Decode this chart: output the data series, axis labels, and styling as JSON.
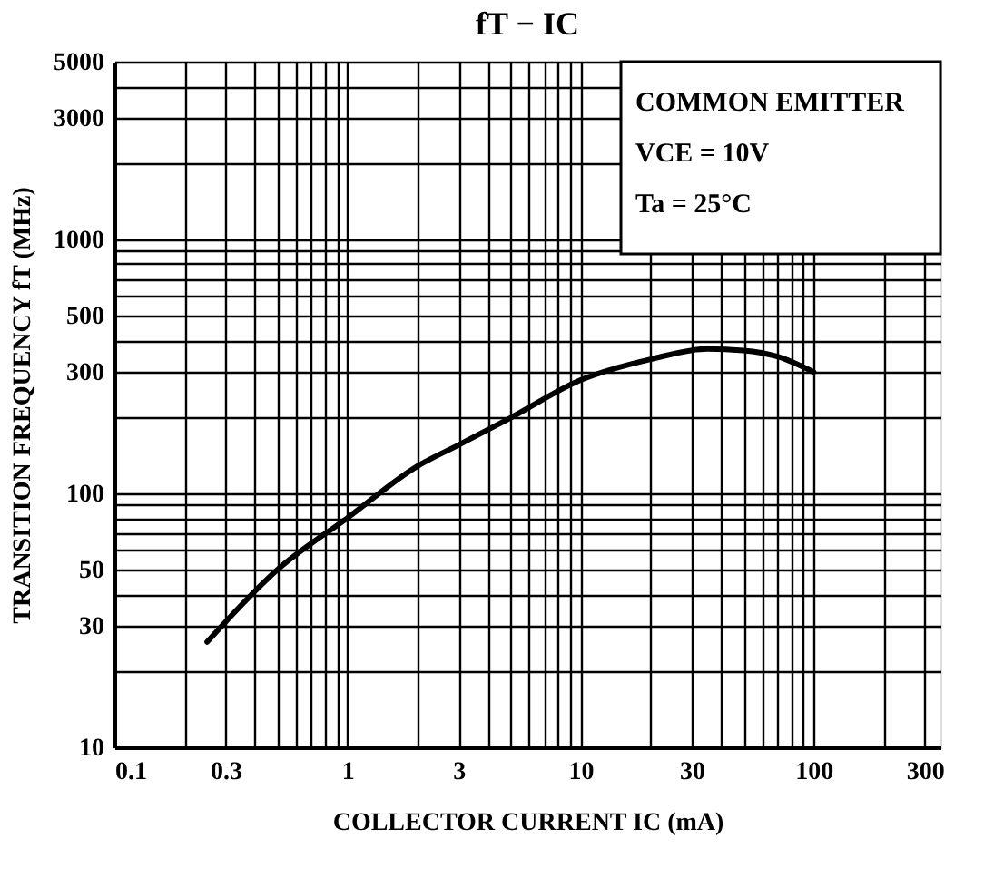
{
  "chart_data": {
    "type": "line",
    "title": "fT − IC",
    "xlabel": "COLLECTOR CURRENT IC (mA)",
    "ylabel": "TRANSITION FREQUENCY fT (MHz)",
    "annotations": [
      "COMMON EMITTER",
      "VCE = 10V",
      "Ta = 25°C"
    ],
    "log": "xy",
    "grid": true,
    "marker": "none",
    "line_style": "solid",
    "xlim": [
      0.1,
      350
    ],
    "ylim": [
      10,
      5000
    ],
    "xticks": [
      0.1,
      {
        "value": 0.2,
        "label": null
      },
      0.3,
      {
        "value": 0.4,
        "label": null
      },
      {
        "value": 0.5,
        "label": null
      },
      {
        "value": 0.6,
        "label": null
      },
      {
        "value": 0.7,
        "label": null
      },
      {
        "value": 0.8,
        "label": null
      },
      {
        "value": 0.9,
        "label": null
      },
      1,
      {
        "value": 2,
        "label": null
      },
      3,
      {
        "value": 4,
        "label": null
      },
      {
        "value": 5,
        "label": null
      },
      {
        "value": 6,
        "label": null
      },
      {
        "value": 7,
        "label": null
      },
      {
        "value": 8,
        "label": null
      },
      {
        "value": 9,
        "label": null
      },
      10,
      {
        "value": 20,
        "label": null
      },
      30,
      {
        "value": 40,
        "label": null
      },
      {
        "value": 50,
        "label": null
      },
      {
        "value": 60,
        "label": null
      },
      {
        "value": 70,
        "label": null
      },
      {
        "value": 80,
        "label": null
      },
      {
        "value": 90,
        "label": null
      },
      100,
      {
        "value": 200,
        "label": null
      },
      300
    ],
    "yticks": [
      10,
      {
        "value": 20,
        "label": null
      },
      30,
      {
        "value": 40,
        "label": null
      },
      50,
      {
        "value": 60,
        "label": null
      },
      {
        "value": 70,
        "label": null
      },
      {
        "value": 80,
        "label": null
      },
      {
        "value": 90,
        "label": null
      },
      100,
      {
        "value": 200,
        "label": null
      },
      300,
      {
        "value": 400,
        "label": null
      },
      500,
      {
        "value": 600,
        "label": null
      },
      {
        "value": 700,
        "label": null
      },
      {
        "value": 800,
        "label": null
      },
      {
        "value": 900,
        "label": null
      },
      1000,
      {
        "value": 2000,
        "label": null
      },
      3000,
      {
        "value": 4000,
        "label": null
      },
      5000
    ],
    "x": [
      0.25,
      0.5,
      1,
      2,
      3,
      5,
      10,
      20,
      35,
      50,
      70,
      100
    ],
    "series": [
      {
        "color": "#000000",
        "values": [
          26,
          50,
          80,
          128,
          155,
          198,
          279,
          337,
          370,
          365,
          345,
          300
        ]
      }
    ]
  }
}
